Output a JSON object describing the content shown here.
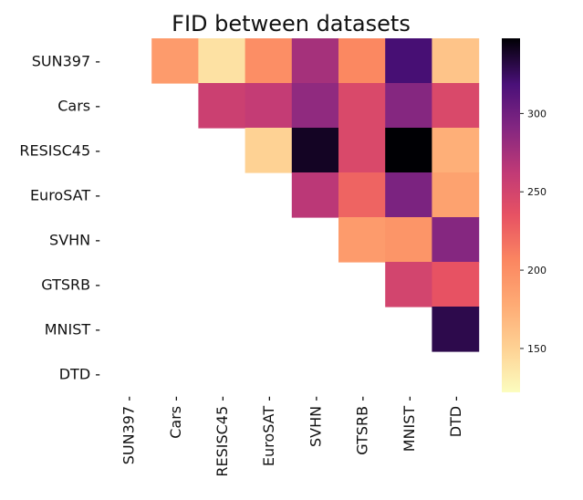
{
  "chart_data": {
    "type": "heatmap",
    "title": "FID between datasets",
    "row_labels": [
      "SUN397",
      "Cars",
      "RESISC45",
      "EuroSAT",
      "SVHN",
      "GTSRB",
      "MNIST",
      "DTD"
    ],
    "col_labels": [
      "SUN397",
      "Cars",
      "RESISC45",
      "EuroSAT",
      "SVHN",
      "GTSRB",
      "MNIST",
      "DTD"
    ],
    "matrix": [
      [
        null,
        190,
        140,
        200,
        275,
        205,
        320,
        160
      ],
      [
        null,
        null,
        255,
        260,
        285,
        245,
        290,
        245
      ],
      [
        null,
        null,
        null,
        150,
        340,
        245,
        350,
        175
      ],
      [
        null,
        null,
        null,
        null,
        265,
        225,
        295,
        185
      ],
      [
        null,
        null,
        null,
        null,
        null,
        190,
        195,
        290
      ],
      [
        null,
        null,
        null,
        null,
        null,
        null,
        250,
        235
      ],
      [
        null,
        null,
        null,
        null,
        null,
        null,
        null,
        330
      ],
      [
        null,
        null,
        null,
        null,
        null,
        null,
        null,
        null
      ]
    ],
    "colormap": "magma_r",
    "vmin": 122,
    "vmax": 348,
    "colorbar_ticks": [
      150,
      200,
      250,
      300
    ],
    "colorbar_tick_labels": [
      "150",
      "200",
      "250",
      "300"
    ],
    "grid": false
  }
}
